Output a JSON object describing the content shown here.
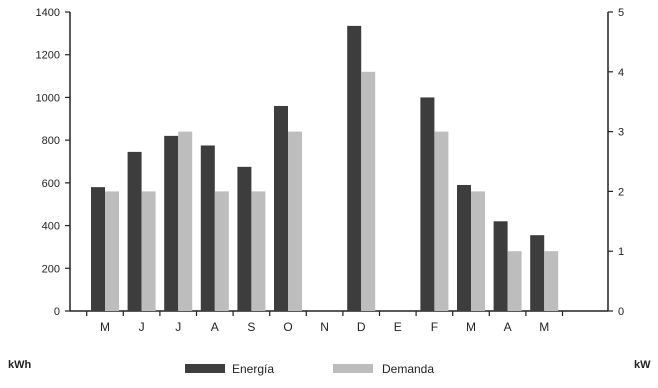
{
  "chart_data": {
    "type": "bar",
    "categories": [
      "M",
      "J",
      "J",
      "A",
      "S",
      "O",
      "N",
      "D",
      "E",
      "F",
      "M",
      "A",
      "M"
    ],
    "series": [
      {
        "name": "Energía",
        "axis": "left",
        "color": "#3d3d3d",
        "values": [
          580,
          745,
          820,
          775,
          675,
          960,
          null,
          1335,
          null,
          1000,
          590,
          420,
          355
        ]
      },
      {
        "name": "Demanda",
        "axis": "right",
        "color": "#bdbdbd",
        "values": [
          2,
          2,
          3,
          2,
          2,
          3,
          null,
          4,
          null,
          3,
          2,
          1,
          1
        ]
      }
    ],
    "y_left": {
      "label": "kWh",
      "range": [
        0,
        1400
      ],
      "ticks": [
        "0",
        "200",
        "400",
        "600",
        "800",
        "1000",
        "1200",
        "1400"
      ]
    },
    "y_right": {
      "label": "kW",
      "range": [
        0,
        5
      ],
      "ticks": [
        "0",
        "1",
        "2",
        "3",
        "4",
        "5"
      ]
    },
    "grid": false,
    "legend": {
      "position": "bottom",
      "entries": [
        "Energía",
        "Demanda"
      ]
    }
  }
}
